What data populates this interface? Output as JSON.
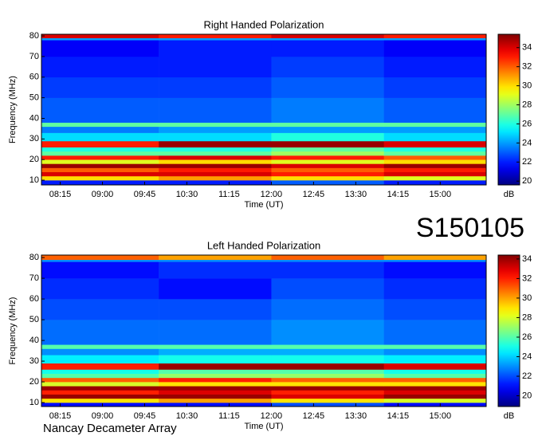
{
  "page": {
    "code": "S150105",
    "source": "Nancay Decameter Array"
  },
  "chart_data": [
    {
      "type": "heatmap",
      "title": "Right Handed Polarization",
      "x_label": "Time (UT)",
      "y_label": "Frequency (MHz)",
      "colormap": "jet",
      "colorbar_label": "dB",
      "clim": [
        19.6,
        35.4
      ],
      "cticks": [
        20,
        22,
        24,
        26,
        28,
        30,
        32,
        34
      ],
      "xlim": [
        475,
        949
      ],
      "ylim": [
        7.7,
        80.8
      ],
      "xticks": [
        {
          "value": 495,
          "label": "08:15"
        },
        {
          "value": 540,
          "label": "09:00"
        },
        {
          "value": 585,
          "label": "09:45"
        },
        {
          "value": 630,
          "label": "10:30"
        },
        {
          "value": 675,
          "label": "11:15"
        },
        {
          "value": 720,
          "label": "12:00"
        },
        {
          "value": 765,
          "label": "12:45"
        },
        {
          "value": 810,
          "label": "13:30"
        },
        {
          "value": 855,
          "label": "14:15"
        },
        {
          "value": 900,
          "label": "15:00"
        }
      ],
      "yticks": [
        10,
        20,
        30,
        40,
        50,
        60,
        70,
        80
      ],
      "x_edges": [
        475,
        600,
        720,
        840,
        949
      ],
      "y_edges": [
        7.7,
        10,
        12,
        14,
        16,
        18,
        20,
        22,
        24,
        26,
        29,
        33,
        36,
        38,
        50,
        60,
        70,
        78,
        79,
        80.8
      ],
      "z": [
        [
          22,
          22,
          23,
          22
        ],
        [
          30,
          31,
          30,
          29
        ],
        [
          34,
          34,
          33,
          34
        ],
        [
          32,
          33,
          32,
          33
        ],
        [
          35,
          35,
          34,
          35
        ],
        [
          29,
          30,
          29,
          30
        ],
        [
          33,
          34,
          33,
          32
        ],
        [
          27,
          27,
          28,
          27
        ],
        [
          26,
          26,
          27,
          26
        ],
        [
          33,
          35,
          35,
          34
        ],
        [
          25,
          25,
          26,
          25
        ],
        [
          23.5,
          24,
          24,
          24
        ],
        [
          27,
          27,
          27,
          27
        ],
        [
          23,
          23,
          23.5,
          23
        ],
        [
          22.5,
          22.5,
          23,
          22.5
        ],
        [
          22,
          22,
          22.5,
          22
        ],
        [
          21.5,
          22,
          22,
          21.5
        ],
        [
          24,
          24,
          24,
          24
        ],
        [
          34,
          33,
          34,
          33
        ]
      ]
    },
    {
      "type": "heatmap",
      "title": "Left Handed Polarization",
      "x_label": "Time (UT)",
      "y_label": "Frequency (MHz)",
      "colormap": "jet",
      "colorbar_label": "dB",
      "clim": [
        18.9,
        34.4
      ],
      "cticks": [
        20,
        22,
        24,
        26,
        28,
        30,
        32,
        34
      ],
      "xlim": [
        475,
        949
      ],
      "ylim": [
        8.1,
        81.2
      ],
      "xticks": [
        {
          "value": 495,
          "label": "08:15"
        },
        {
          "value": 540,
          "label": "09:00"
        },
        {
          "value": 585,
          "label": "09:45"
        },
        {
          "value": 630,
          "label": "10:30"
        },
        {
          "value": 675,
          "label": "11:15"
        },
        {
          "value": 720,
          "label": "12:00"
        },
        {
          "value": 765,
          "label": "12:45"
        },
        {
          "value": 810,
          "label": "13:30"
        },
        {
          "value": 855,
          "label": "14:15"
        },
        {
          "value": 900,
          "label": "15:00"
        }
      ],
      "yticks": [
        10,
        20,
        30,
        40,
        50,
        60,
        70,
        80
      ],
      "x_edges": [
        475,
        600,
        720,
        840,
        949
      ],
      "y_edges": [
        8.1,
        10,
        12,
        14,
        16,
        18,
        20,
        22,
        24,
        26,
        29,
        33,
        36,
        38,
        50,
        60,
        70,
        78,
        79,
        81.2
      ],
      "z": [
        [
          21,
          21,
          22,
          21
        ],
        [
          29,
          30,
          29,
          28
        ],
        [
          34,
          34,
          33,
          34
        ],
        [
          32,
          33,
          32,
          33
        ],
        [
          34,
          34,
          34,
          34
        ],
        [
          28,
          29,
          29,
          29
        ],
        [
          31,
          32,
          31,
          31
        ],
        [
          26,
          27,
          27,
          26
        ],
        [
          25,
          26,
          26,
          25
        ],
        [
          32,
          34,
          34,
          33
        ],
        [
          24.5,
          25,
          25,
          24.5
        ],
        [
          23,
          23.5,
          23.5,
          23
        ],
        [
          26,
          26,
          26,
          26
        ],
        [
          22.5,
          22.5,
          23,
          22.5
        ],
        [
          22,
          22,
          22.5,
          22
        ],
        [
          21.5,
          21,
          22,
          21.5
        ],
        [
          21,
          21.5,
          21.5,
          21
        ],
        [
          23,
          23,
          23,
          23
        ],
        [
          31,
          30,
          31,
          30
        ]
      ]
    }
  ]
}
